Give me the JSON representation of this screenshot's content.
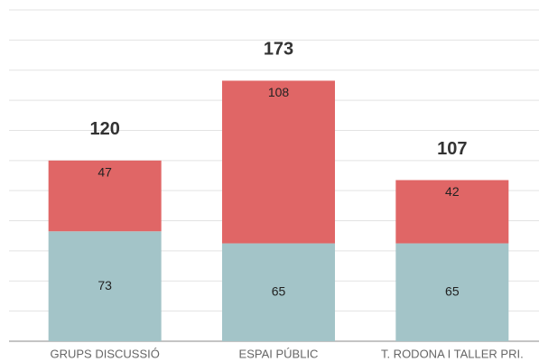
{
  "chart_data": {
    "type": "stacked_bar",
    "categories": [
      "GRUPS DISCUSSIÓ",
      "ESPAI PÚBLIC",
      "T. RODONA I TALLER PRI."
    ],
    "series": [
      {
        "color": "#a3c4c8",
        "values": [
          73,
          65,
          65
        ]
      },
      {
        "color": "#e06666",
        "values": [
          47,
          108,
          42
        ]
      }
    ],
    "totals": [
      120,
      173,
      107
    ],
    "ylim": [
      0,
      220
    ],
    "yticks": [
      0,
      20,
      40,
      60,
      80,
      100,
      120,
      140,
      160,
      180,
      200,
      220
    ],
    "grid": true
  }
}
